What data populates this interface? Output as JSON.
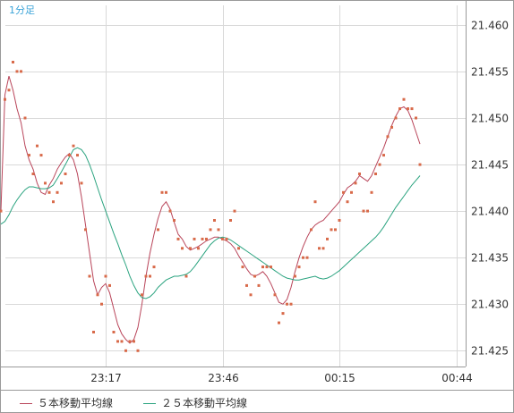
{
  "chart_data": {
    "type": "line",
    "timeframe_label": "1分足",
    "x_tick_labels": [
      "23:17",
      "23:46",
      "00:15",
      "00:44"
    ],
    "y_ticks": [
      21.425,
      21.43,
      21.435,
      21.44,
      21.445,
      21.45,
      21.455,
      21.46
    ],
    "y_tick_labels": [
      "21.425",
      "21.430",
      "21.435",
      "21.440",
      "21.445",
      "21.450",
      "21.455",
      "21.460"
    ],
    "ylim": [
      21.4233,
      21.4621
    ],
    "grid": true,
    "x_tick_index": [
      26,
      55,
      84,
      113
    ],
    "x_count": 116,
    "colors": {
      "points": "#d86a4a",
      "ma5": "#b9455a",
      "ma25": "#2aa37f",
      "grid": "#d9d9d9",
      "timeframe": "#3aa3d8"
    },
    "points": [
      21.44,
      21.452,
      21.453,
      21.456,
      21.455,
      21.455,
      21.45,
      21.446,
      21.444,
      21.447,
      21.446,
      21.443,
      21.442,
      21.441,
      21.442,
      21.443,
      21.444,
      21.446,
      21.447,
      21.446,
      21.443,
      21.438,
      21.433,
      21.427,
      21.431,
      21.43,
      21.433,
      21.432,
      21.427,
      21.426,
      21.426,
      21.425,
      21.426,
      21.426,
      21.425,
      21.431,
      21.433,
      21.433,
      21.434,
      21.438,
      21.442,
      21.442,
      21.44,
      21.439,
      21.437,
      21.436,
      21.433,
      21.436,
      21.437,
      21.436,
      21.437,
      21.437,
      21.438,
      21.439,
      21.438,
      21.437,
      21.437,
      21.439,
      21.44,
      21.436,
      21.434,
      21.432,
      21.431,
      21.433,
      21.432,
      21.434,
      21.434,
      21.434,
      21.431,
      21.428,
      21.429,
      21.43,
      21.43,
      21.433,
      21.434,
      21.435,
      21.435,
      21.438,
      21.441,
      21.436,
      21.436,
      21.437,
      21.438,
      21.438,
      21.439,
      21.442,
      21.441,
      21.442,
      21.443,
      21.444,
      21.44,
      21.44,
      21.442,
      21.444,
      21.445,
      21.446,
      21.448,
      21.449,
      21.45,
      21.451,
      21.452,
      21.451,
      21.451,
      21.45,
      21.445
    ],
    "series": [
      {
        "name": "5本移動平均線",
        "values": [
          21.44,
          21.4525,
          21.4545,
          21.453,
          21.451,
          21.4495,
          21.447,
          21.4455,
          21.4445,
          21.443,
          21.442,
          21.4418,
          21.4428,
          21.4435,
          21.4445,
          21.4452,
          21.4458,
          21.4462,
          21.4455,
          21.444,
          21.4415,
          21.4385,
          21.4355,
          21.4325,
          21.431,
          21.4318,
          21.4322,
          21.4312,
          21.4295,
          21.4278,
          21.4268,
          21.4262,
          21.4258,
          21.4262,
          21.4275,
          21.43,
          21.433,
          21.4355,
          21.4375,
          21.4392,
          21.4405,
          21.441,
          21.4402,
          21.4388,
          21.4375,
          21.437,
          21.4362,
          21.4358,
          21.436,
          21.4362,
          21.4365,
          21.4368,
          21.437,
          21.4372,
          21.4372,
          21.437,
          21.4368,
          21.4365,
          21.436,
          21.4352,
          21.4345,
          21.4338,
          21.4332,
          21.433,
          21.4332,
          21.4335,
          21.433,
          21.4322,
          21.4312,
          21.4302,
          21.43,
          21.4305,
          21.4318,
          21.4335,
          21.435,
          21.4362,
          21.4372,
          21.438,
          21.4385,
          21.4388,
          21.439,
          21.4395,
          21.44,
          21.4405,
          21.441,
          21.4418,
          21.4425,
          21.4428,
          21.4432,
          21.4438,
          21.4435,
          21.4432,
          21.4438,
          21.4448,
          21.4458,
          21.4468,
          21.448,
          21.4492,
          21.4502,
          21.451,
          21.4512,
          21.4508,
          21.4498,
          21.4485,
          21.4472
        ]
      },
      {
        "name": "２５本移動平均線",
        "values": [
          21.4386,
          21.4389,
          21.4396,
          21.4405,
          21.4412,
          21.4418,
          21.4423,
          21.4426,
          21.4426,
          21.4425,
          21.4424,
          21.4424,
          21.4425,
          21.4428,
          21.4435,
          21.4442,
          21.445,
          21.4458,
          21.4466,
          21.4468,
          21.4466,
          21.446,
          21.445,
          21.4438,
          21.4425,
          21.4412,
          21.44,
          21.4388,
          21.4376,
          21.4365,
          21.4353,
          21.4342,
          21.433,
          21.432,
          21.4312,
          21.4307,
          21.4306,
          21.4308,
          21.4312,
          21.4318,
          21.4322,
          21.4326,
          21.4328,
          21.433,
          21.433,
          21.4331,
          21.4332,
          21.4335,
          21.434,
          21.4346,
          21.4352,
          21.4358,
          21.4364,
          21.4368,
          21.4371,
          21.4372,
          21.4371,
          21.4369,
          21.4366,
          21.4363,
          21.436,
          21.4357,
          21.4354,
          21.4351,
          21.4348,
          21.4345,
          21.4342,
          21.4339,
          21.4336,
          21.4333,
          21.433,
          21.4328,
          21.4327,
          21.4326,
          21.4326,
          21.4327,
          21.4328,
          21.4329,
          21.433,
          21.4328,
          21.4327,
          21.4328,
          21.433,
          21.4333,
          21.4336,
          21.434,
          21.4344,
          21.4348,
          21.4352,
          21.4356,
          21.436,
          21.4364,
          21.4368,
          21.4372,
          21.4377,
          21.4383,
          21.439,
          21.4397,
          21.4404,
          21.441,
          21.4416,
          21.4422,
          21.4428,
          21.4433,
          21.4438
        ]
      }
    ],
    "legend": [
      {
        "label": "５本移動平均線",
        "color": "#b9455a"
      },
      {
        "label": "２５本移動平均線",
        "color": "#2aa37f"
      }
    ]
  }
}
